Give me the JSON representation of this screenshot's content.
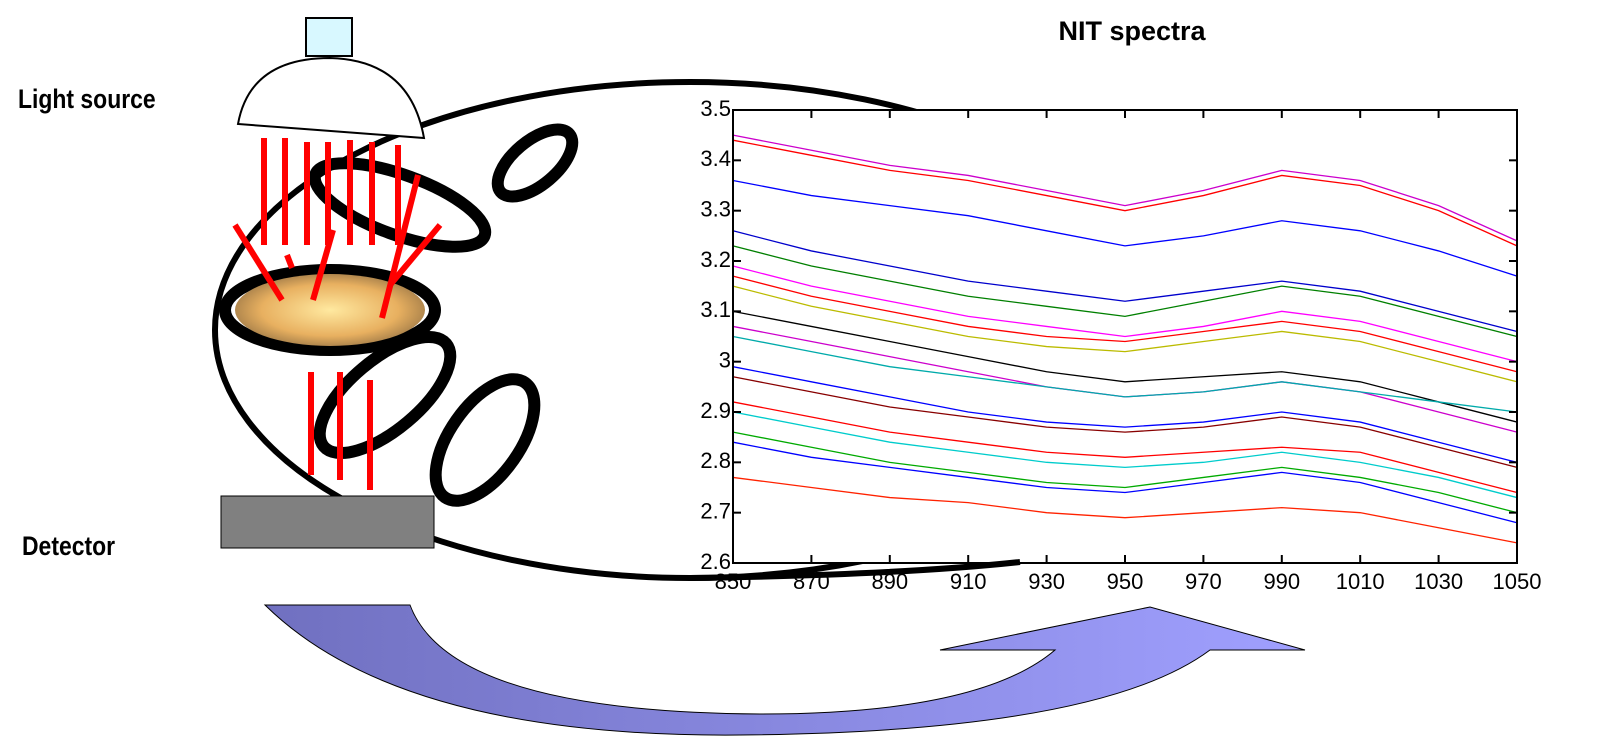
{
  "labels": {
    "light_source": "Light source",
    "detector": "Detector"
  },
  "chart_data": {
    "type": "line",
    "title": "NIT spectra",
    "x": [
      850,
      870,
      890,
      910,
      930,
      950,
      970,
      990,
      1010,
      1030,
      1050
    ],
    "xlim": [
      850,
      1050
    ],
    "xticks": [
      850,
      870,
      890,
      910,
      930,
      950,
      970,
      990,
      1010,
      1030,
      1050
    ],
    "ylim": [
      2.6,
      3.5
    ],
    "yticks": [
      2.6,
      2.7,
      2.8,
      2.9,
      3,
      3.1,
      3.2,
      3.3,
      3.4,
      3.5
    ],
    "series": [
      {
        "color": "#cc00cc",
        "values": [
          3.45,
          3.42,
          3.39,
          3.37,
          3.34,
          3.31,
          3.34,
          3.38,
          3.36,
          3.31,
          3.24
        ]
      },
      {
        "color": "#ff0000",
        "values": [
          3.44,
          3.41,
          3.38,
          3.36,
          3.33,
          3.3,
          3.33,
          3.37,
          3.35,
          3.3,
          3.23
        ]
      },
      {
        "color": "#0000ff",
        "values": [
          3.36,
          3.33,
          3.31,
          3.29,
          3.26,
          3.23,
          3.25,
          3.28,
          3.26,
          3.22,
          3.17
        ]
      },
      {
        "color": "#0000cc",
        "values": [
          3.26,
          3.22,
          3.19,
          3.16,
          3.14,
          3.12,
          3.14,
          3.16,
          3.14,
          3.1,
          3.06
        ]
      },
      {
        "color": "#008000",
        "values": [
          3.23,
          3.19,
          3.16,
          3.13,
          3.11,
          3.09,
          3.12,
          3.15,
          3.13,
          3.09,
          3.05
        ]
      },
      {
        "color": "#ff00ff",
        "values": [
          3.19,
          3.15,
          3.12,
          3.09,
          3.07,
          3.05,
          3.07,
          3.1,
          3.08,
          3.04,
          3.0
        ]
      },
      {
        "color": "#ff0000",
        "values": [
          3.17,
          3.13,
          3.1,
          3.07,
          3.05,
          3.04,
          3.06,
          3.08,
          3.06,
          3.02,
          2.98
        ]
      },
      {
        "color": "#bbbb00",
        "values": [
          3.15,
          3.11,
          3.08,
          3.05,
          3.03,
          3.02,
          3.04,
          3.06,
          3.04,
          3.0,
          2.96
        ]
      },
      {
        "color": "#000000",
        "values": [
          3.1,
          3.07,
          3.04,
          3.01,
          2.98,
          2.96,
          2.97,
          2.98,
          2.96,
          2.92,
          2.88
        ]
      },
      {
        "color": "#cc00cc",
        "values": [
          3.07,
          3.04,
          3.01,
          2.98,
          2.95,
          2.93,
          2.94,
          2.96,
          2.94,
          2.9,
          2.86
        ]
      },
      {
        "color": "#00aaaa",
        "values": [
          3.05,
          3.02,
          2.99,
          2.97,
          2.95,
          2.93,
          2.94,
          2.96,
          2.94,
          2.92,
          2.9
        ]
      },
      {
        "color": "#0000ff",
        "values": [
          2.99,
          2.96,
          2.93,
          2.9,
          2.88,
          2.87,
          2.88,
          2.9,
          2.88,
          2.84,
          2.8
        ]
      },
      {
        "color": "#880000",
        "values": [
          2.97,
          2.94,
          2.91,
          2.89,
          2.87,
          2.86,
          2.87,
          2.89,
          2.87,
          2.83,
          2.79
        ]
      },
      {
        "color": "#ff0000",
        "values": [
          2.92,
          2.89,
          2.86,
          2.84,
          2.82,
          2.81,
          2.82,
          2.83,
          2.82,
          2.78,
          2.74
        ]
      },
      {
        "color": "#00cccc",
        "values": [
          2.9,
          2.87,
          2.84,
          2.82,
          2.8,
          2.79,
          2.8,
          2.82,
          2.8,
          2.77,
          2.73
        ]
      },
      {
        "color": "#00aa00",
        "values": [
          2.86,
          2.83,
          2.8,
          2.78,
          2.76,
          2.75,
          2.77,
          2.79,
          2.77,
          2.74,
          2.7
        ]
      },
      {
        "color": "#0000ff",
        "values": [
          2.84,
          2.81,
          2.79,
          2.77,
          2.75,
          2.74,
          2.76,
          2.78,
          2.76,
          2.72,
          2.68
        ]
      },
      {
        "color": "#ff2200",
        "values": [
          2.77,
          2.75,
          2.73,
          2.72,
          2.7,
          2.69,
          2.7,
          2.71,
          2.7,
          2.67,
          2.64
        ]
      }
    ]
  }
}
